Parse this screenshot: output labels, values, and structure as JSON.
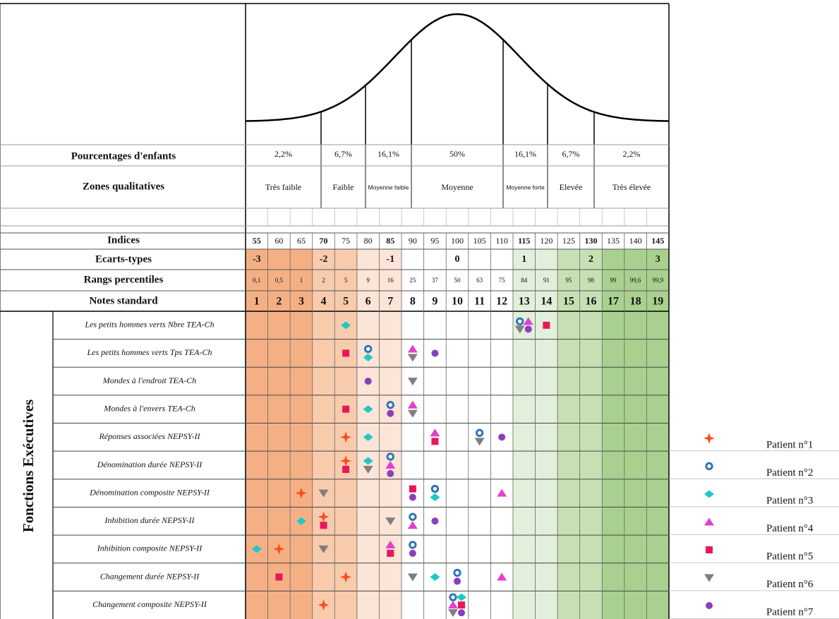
{
  "header_labels": {
    "percentages": "Pourcentages d'enfants",
    "zones": "Zones qualitatives",
    "indices": "Indices",
    "ecarts": "Ecarts-types",
    "percentiles": "Rangs percentiles",
    "notes": "Notes standard"
  },
  "bands": [
    {
      "percentage": "2,2%",
      "zone": "Très faible"
    },
    {
      "percentage": "6,7%",
      "zone": "Faible"
    },
    {
      "percentage": "16,1%",
      "zone": "Moyenne faible"
    },
    {
      "percentage": "50%",
      "zone": "Moyenne"
    },
    {
      "percentage": "16,1%",
      "zone": "Moyenne forte"
    },
    {
      "percentage": "6,7%",
      "zone": "Elevée"
    },
    {
      "percentage": "2,2%",
      "zone": "Très élevée"
    }
  ],
  "indices": [
    55,
    60,
    65,
    70,
    75,
    80,
    85,
    90,
    95,
    100,
    105,
    110,
    115,
    120,
    125,
    130,
    135,
    140,
    145
  ],
  "ecarts_types": [
    -3,
    null,
    null,
    -2,
    null,
    null,
    -1,
    null,
    null,
    0,
    null,
    null,
    1,
    null,
    null,
    2,
    null,
    null,
    3
  ],
  "percentiles": [
    "0,1",
    "0,5",
    1,
    2,
    5,
    9,
    16,
    25,
    37,
    50,
    63,
    75,
    84,
    91,
    95,
    98,
    99,
    "99,6",
    "99,9"
  ],
  "notes_standard": [
    1,
    2,
    3,
    4,
    5,
    6,
    7,
    8,
    9,
    10,
    11,
    12,
    13,
    14,
    15,
    16,
    17,
    18,
    19
  ],
  "section": "Fonctions Exécutives",
  "rows": [
    {
      "label": "Les petits hommes verts Nbre TEA-Ch",
      "scores": [
        null,
        13,
        5,
        13,
        14,
        13,
        13
      ]
    },
    {
      "label": "Les petits hommes verts Tps TEA-Ch",
      "scores": [
        null,
        6,
        6,
        8,
        5,
        8,
        9
      ]
    },
    {
      "label": "Mondes à l'endroit TEA-Ch",
      "scores": [
        null,
        null,
        null,
        null,
        null,
        8,
        6
      ]
    },
    {
      "label": "Mondes à l'envers TEA-Ch",
      "scores": [
        null,
        7,
        6,
        8,
        5,
        8,
        7
      ]
    },
    {
      "label": "Réponses associées NEPSY-II",
      "scores": [
        5,
        11,
        6,
        9,
        9,
        11,
        12
      ]
    },
    {
      "label": "Dénomination durée NEPSY-II",
      "scores": [
        5,
        7,
        6,
        7,
        5,
        6,
        7
      ]
    },
    {
      "label": "Dénomination composite NEPSY-II",
      "scores": [
        3,
        9,
        9,
        12,
        8,
        4,
        8
      ]
    },
    {
      "label": "Inhibition durée NEPSY-II",
      "scores": [
        4,
        8,
        3,
        8,
        4,
        7,
        9
      ]
    },
    {
      "label": "Inhibition composite NEPSY-II",
      "scores": [
        2,
        8,
        1,
        7,
        7,
        4,
        8
      ]
    },
    {
      "label": "Changement durée NEPSY-II",
      "scores": [
        5,
        10,
        9,
        12,
        2,
        8,
        10
      ]
    },
    {
      "label": "Changement composite NEPSY-II",
      "scores": [
        4,
        10,
        10,
        10,
        10,
        10,
        10
      ]
    }
  ],
  "legend": [
    {
      "name": "Patient n°1",
      "color": "#ff4b1f"
    },
    {
      "name": "Patient n°2",
      "color": "#2e75b6"
    },
    {
      "name": "Patient n°3",
      "color": "#1ec8c8"
    },
    {
      "name": "Patient n°4",
      "color": "#e43fd0"
    },
    {
      "name": "Patient n°5",
      "color": "#e8175d"
    },
    {
      "name": "Patient n°6",
      "color": "#7f7f7f"
    },
    {
      "name": "Patient n°7",
      "color": "#8a3fbf"
    }
  ]
}
